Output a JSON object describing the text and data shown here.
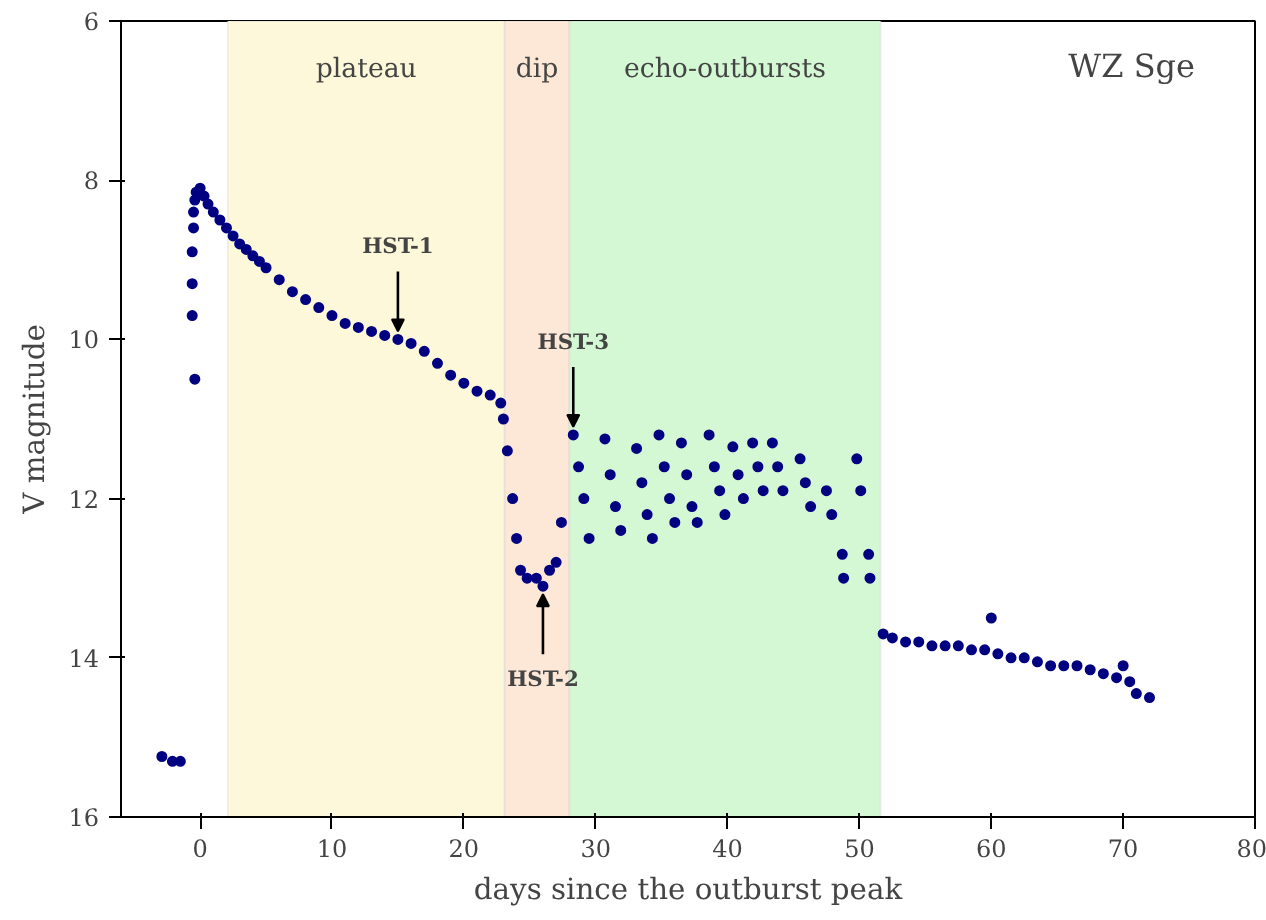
{
  "chart_data": {
    "type": "scatter",
    "xlabel": "days since the outburst peak",
    "ylabel": "V magnitude",
    "xlim": [
      -6,
      80
    ],
    "ylim": [
      16,
      6
    ],
    "xticks": [
      0,
      10,
      20,
      30,
      40,
      50,
      60,
      70,
      80
    ],
    "yticks": [
      6,
      8,
      10,
      12,
      14,
      16
    ],
    "grid": false,
    "marker": "circle",
    "series": [
      {
        "color": "#000080",
        "x": [
          -2.9,
          -2.1,
          -1.5,
          -0.6,
          -0.6,
          -0.6,
          -0.5,
          -0.5,
          -0.4,
          -0.4,
          -0.3,
          0,
          0.3,
          0.6,
          1,
          1.5,
          2,
          2.5,
          3,
          3.5,
          4,
          4.5,
          5,
          6,
          7,
          8,
          9,
          10,
          11,
          12,
          13,
          14,
          15,
          16,
          17,
          18,
          19,
          20,
          21,
          22,
          22.8,
          23,
          23.3,
          23.7,
          24,
          24.3,
          24.8,
          25.5,
          26,
          26.5,
          27,
          27.4,
          28.3,
          28.7,
          29.1,
          29.5,
          30.7,
          31.1,
          31.5,
          31.9,
          33.1,
          33.5,
          33.9,
          34.3,
          34.8,
          35.2,
          35.6,
          36,
          36.5,
          36.9,
          37.3,
          37.7,
          38.6,
          39,
          39.4,
          39.8,
          40.4,
          40.8,
          41.2,
          41.9,
          42.3,
          42.7,
          43.4,
          43.8,
          44.2,
          45.5,
          45.9,
          46.3,
          47.5,
          47.9,
          48.7,
          48.8,
          49.8,
          50.1,
          50.7,
          50.8,
          51.8,
          52.5,
          53.5,
          54.5,
          55.5,
          56.5,
          57.5,
          58.5,
          59.5,
          60,
          60.5,
          61.5,
          62.5,
          63.5,
          64.5,
          65.5,
          66.5,
          67.5,
          68.5,
          69.5,
          70,
          70.5,
          71,
          72
        ],
        "values": [
          15.24,
          15.3,
          15.3,
          9.7,
          9.3,
          8.9,
          8.6,
          8.4,
          10.5,
          8.25,
          8.15,
          8.1,
          8.2,
          8.3,
          8.4,
          8.5,
          8.6,
          8.7,
          8.8,
          8.87,
          8.95,
          9.02,
          9.1,
          9.25,
          9.4,
          9.5,
          9.6,
          9.7,
          9.8,
          9.85,
          9.9,
          9.95,
          10.0,
          10.05,
          10.15,
          10.3,
          10.45,
          10.55,
          10.65,
          10.7,
          10.8,
          11.0,
          11.4,
          12.0,
          12.5,
          12.9,
          13.0,
          13.0,
          13.1,
          12.9,
          12.8,
          12.3,
          11.2,
          11.6,
          12.0,
          12.5,
          11.25,
          11.7,
          12.1,
          12.4,
          11.37,
          11.8,
          12.2,
          12.5,
          11.2,
          11.6,
          12.0,
          12.3,
          11.3,
          11.7,
          12.1,
          12.3,
          11.2,
          11.6,
          11.9,
          12.2,
          11.35,
          11.7,
          12.0,
          11.3,
          11.6,
          11.9,
          11.3,
          11.6,
          11.9,
          11.5,
          11.8,
          12.1,
          11.9,
          12.2,
          12.7,
          13.0,
          11.5,
          11.9,
          12.7,
          13.0,
          13.7,
          13.75,
          13.8,
          13.8,
          13.85,
          13.85,
          13.85,
          13.9,
          13.9,
          13.5,
          13.95,
          14.0,
          14.0,
          14.05,
          14.1,
          14.1,
          14.1,
          14.15,
          14.2,
          14.25,
          14.1,
          14.3,
          14.45,
          14.5
        ]
      }
    ],
    "bands": [
      {
        "axis": "x",
        "from": 2.1,
        "to": 23.1,
        "label": "plateau",
        "color": "#fdf8d9"
      },
      {
        "axis": "x",
        "from": 23.1,
        "to": 28.0,
        "label": "dip",
        "color": "#fde8d7"
      },
      {
        "axis": "x",
        "from": 28.0,
        "to": 51.6,
        "label": "echo-outbursts",
        "color": "#d4f7d4"
      }
    ],
    "annotations": [
      "WZ Sge",
      {
        "text": "HST-1",
        "x": 15,
        "y": 10.0
      },
      {
        "text": "HST-2",
        "x": 26,
        "y": 13.1
      },
      {
        "text": "HST-3",
        "x": 28.3,
        "y": 11.2
      }
    ]
  }
}
